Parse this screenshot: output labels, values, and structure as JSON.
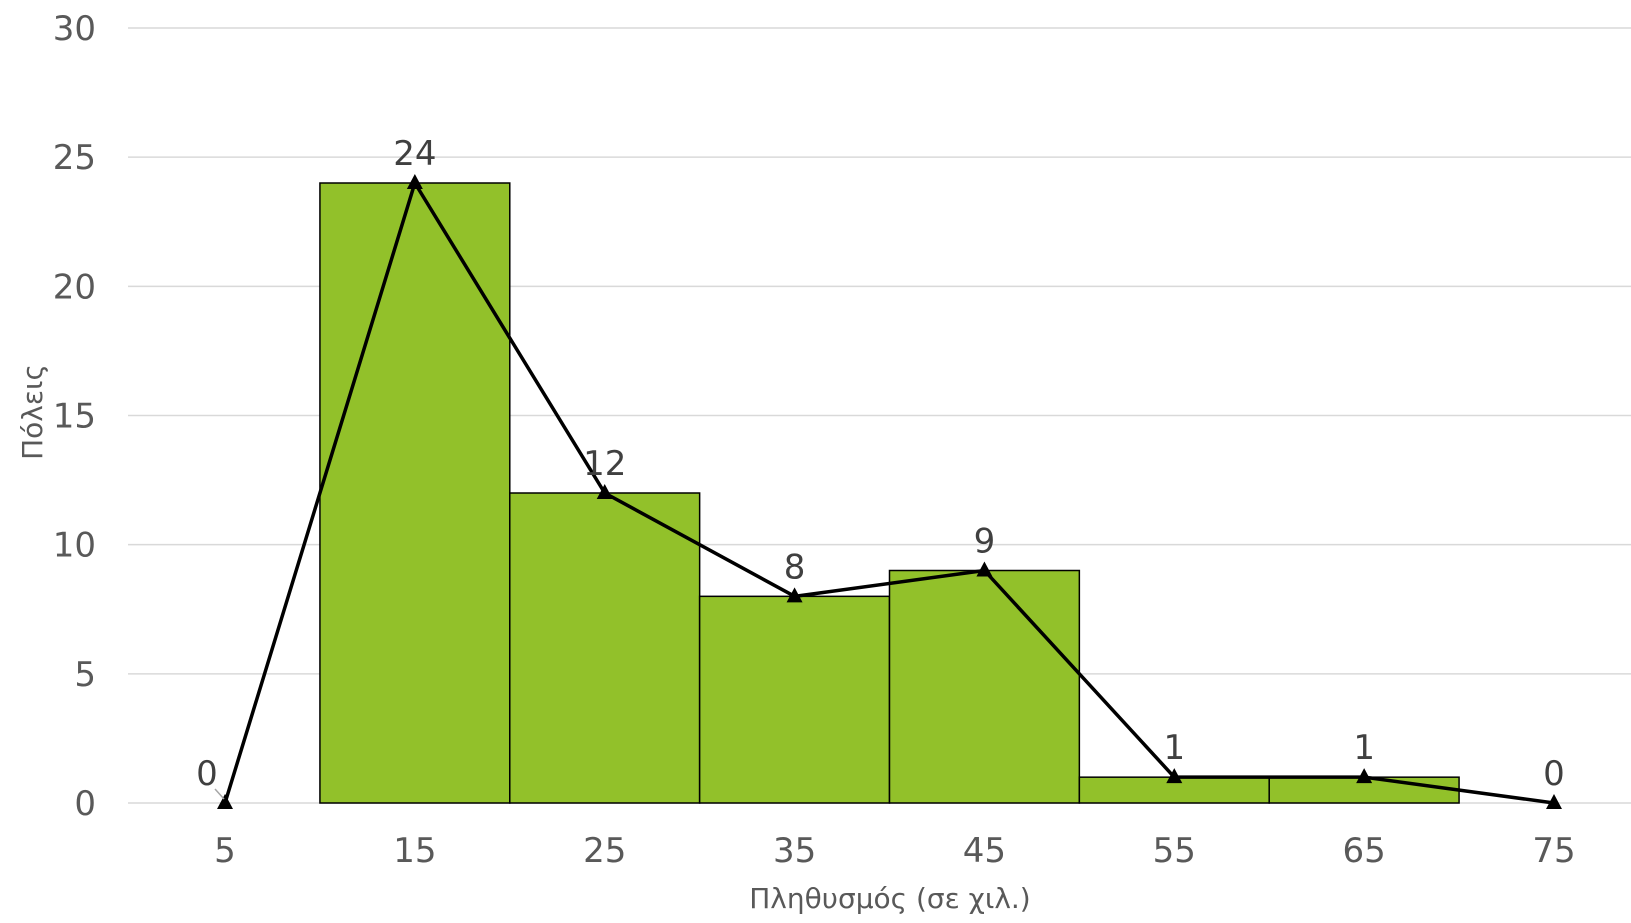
{
  "chart_data": {
    "type": "bar",
    "title": "",
    "xlabel": "Πληθυσμός (σε χιλ.)",
    "ylabel": "Πόλεις",
    "ylim": [
      0,
      30
    ],
    "yticks": [
      0,
      5,
      10,
      15,
      20,
      25,
      30
    ],
    "grid": "horizontal",
    "legend": "none",
    "histogram": {
      "name": "",
      "bin_edges": [
        10,
        20,
        30,
        40,
        50,
        60,
        70
      ],
      "values": [
        24,
        12,
        8,
        9,
        1,
        1
      ],
      "color": "#92C12A",
      "edge_color": "#000000"
    },
    "polygon": {
      "type": "line",
      "name": "",
      "x": [
        5,
        15,
        25,
        35,
        45,
        55,
        65,
        75
      ],
      "values": [
        0,
        24,
        12,
        8,
        9,
        1,
        1,
        0
      ],
      "data_labels": [
        "0",
        "24",
        "12",
        "8",
        "9",
        "1",
        "1",
        "0"
      ],
      "marker": "triangle",
      "color": "#000000"
    },
    "x_tick_labels": [
      "5",
      "15",
      "25",
      "35",
      "45",
      "55",
      "65",
      "75"
    ],
    "y_tick_labels": [
      "0",
      "5",
      "10",
      "15",
      "20",
      "25",
      "30"
    ],
    "grid_color": "#D9D9D9"
  }
}
